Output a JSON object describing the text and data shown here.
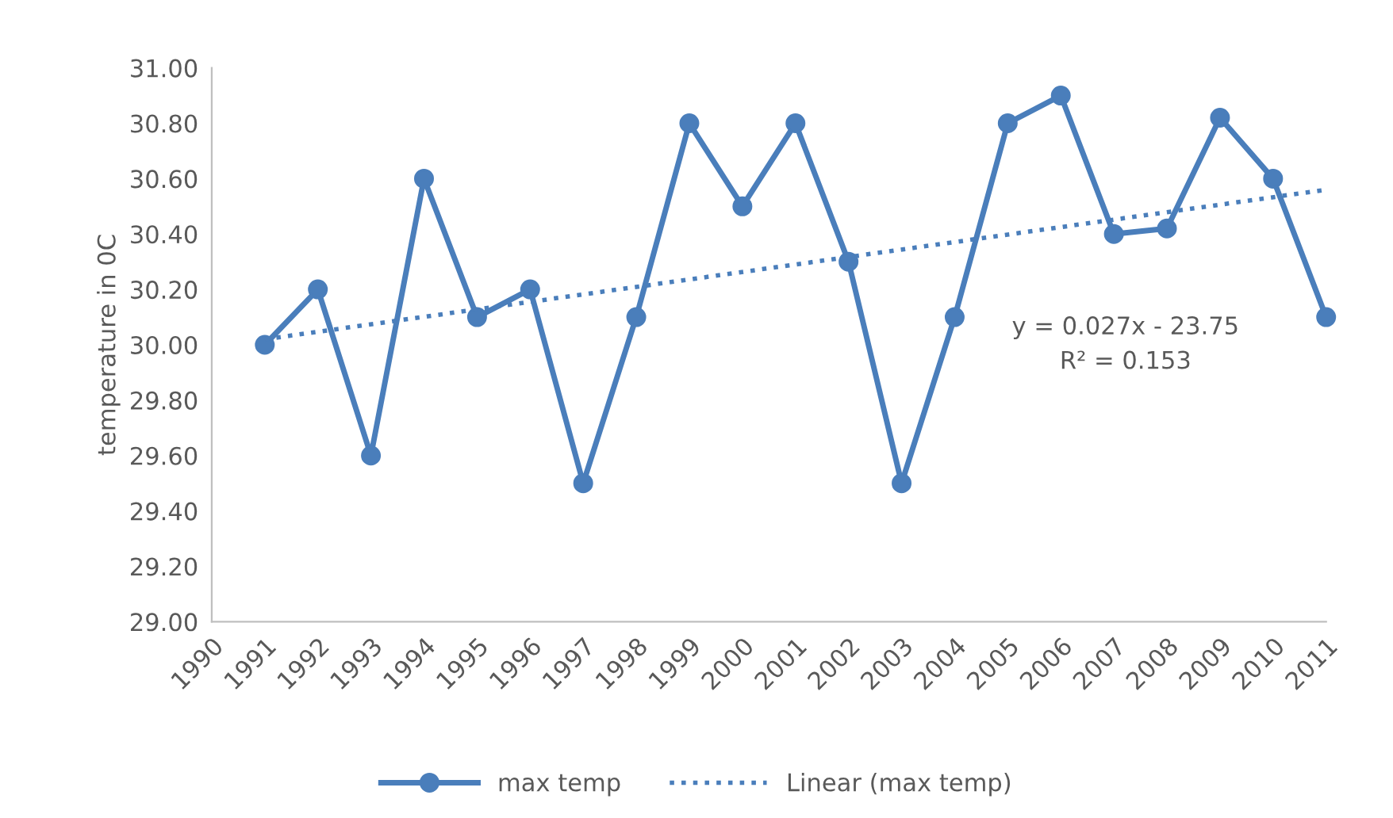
{
  "chart_data": {
    "type": "line",
    "ylabel": "temperature in 0C",
    "xlim": [
      1990,
      2011
    ],
    "xticks": [
      1990,
      1991,
      1992,
      1993,
      1994,
      1995,
      1996,
      1997,
      1998,
      1999,
      2000,
      2001,
      2002,
      2003,
      2004,
      2005,
      2006,
      2007,
      2008,
      2009,
      2010,
      2011
    ],
    "ylim": [
      29,
      31
    ],
    "yticks": [
      {
        "value": 29,
        "label": "29.00"
      },
      {
        "value": 29.2,
        "label": "29.20"
      },
      {
        "value": 29.4,
        "label": "29.40"
      },
      {
        "value": 29.6,
        "label": "29.60"
      },
      {
        "value": 29.8,
        "label": "29.80"
      },
      {
        "value": 30,
        "label": "30.00"
      },
      {
        "value": 30.2,
        "label": "30.20"
      },
      {
        "value": 30.4,
        "label": "30.40"
      },
      {
        "value": 30.6,
        "label": "30.60"
      },
      {
        "value": 30.8,
        "label": "30.80"
      },
      {
        "value": 31,
        "label": "31.00"
      }
    ],
    "grid": false,
    "legend": "bottom",
    "series": [
      {
        "name": "max temp",
        "color": "#4a7ebb",
        "marker": "circle",
        "line_style": "solid",
        "x": [
          1991,
          1992,
          1993,
          1994,
          1995,
          1996,
          1997,
          1998,
          1999,
          2000,
          2001,
          2002,
          2003,
          2004,
          2005,
          2006,
          2007,
          2008,
          2009,
          2010,
          2011
        ],
        "values": [
          30.0,
          30.2,
          29.6,
          30.6,
          30.1,
          30.2,
          29.5,
          30.1,
          30.8,
          30.5,
          30.8,
          30.3,
          29.5,
          30.1,
          30.8,
          30.9,
          30.4,
          30.42,
          30.82,
          30.6,
          30.1
        ]
      },
      {
        "name": "Linear (max temp)",
        "color": "#4a7ebb",
        "marker": "none",
        "line_style": "dotted",
        "x": [
          1991,
          2011
        ],
        "values": [
          30.02,
          30.56
        ]
      }
    ],
    "annotations": [
      "y = 0.027x - 23.75",
      "R² = 0.153"
    ]
  }
}
